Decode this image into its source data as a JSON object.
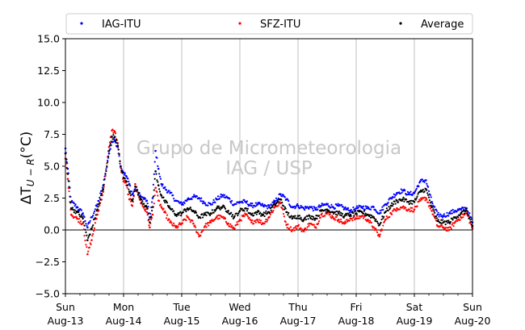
{
  "chart_data": {
    "type": "scatter",
    "title": "",
    "ylabel": "ΔT_{U−R}(°C)",
    "ylabel_display": {
      "main": "ΔT",
      "sub": "U − R",
      "rest": "(°C)"
    },
    "ylim": [
      -5.0,
      15.0
    ],
    "yticks": [
      "−5.0",
      "−2.5",
      "0.0",
      "2.5",
      "5.0",
      "7.5",
      "10.0",
      "12.5",
      "15.0"
    ],
    "ytick_values": [
      -5.0,
      -2.5,
      0.0,
      2.5,
      5.0,
      7.5,
      10.0,
      12.5,
      15.0
    ],
    "x_unit": "days from Sun Aug-13 00:00",
    "xlim": [
      0,
      7
    ],
    "xticks": [
      {
        "day": "Sun",
        "date": "Aug-13"
      },
      {
        "day": "Mon",
        "date": "Aug-14"
      },
      {
        "day": "Tue",
        "date": "Aug-15"
      },
      {
        "day": "Wed",
        "date": "Aug-16"
      },
      {
        "day": "Thu",
        "date": "Aug-17"
      },
      {
        "day": "Fri",
        "date": "Aug-18"
      },
      {
        "day": "Sat",
        "date": "Aug-19"
      },
      {
        "day": "Sun",
        "date": "Aug-20"
      }
    ],
    "grid": "vertical",
    "zero_line": true,
    "legend_position": "top",
    "watermark": [
      "Grupo de Micrometeorologia",
      "IAG / USP"
    ],
    "series": [
      {
        "name": "IAG-ITU",
        "color": "#0000ff",
        "x": [
          0,
          0.04,
          0.1,
          0.2,
          0.3,
          0.38,
          0.45,
          0.55,
          0.65,
          0.75,
          0.8,
          0.85,
          0.9,
          0.95,
          1.0,
          1.05,
          1.1,
          1.15,
          1.2,
          1.3,
          1.4,
          1.45,
          1.5,
          1.55,
          1.6,
          1.65,
          1.7,
          1.8,
          1.9,
          2.0,
          2.1,
          2.2,
          2.3,
          2.4,
          2.5,
          2.6,
          2.7,
          2.8,
          2.9,
          3.0,
          3.1,
          3.2,
          3.3,
          3.4,
          3.5,
          3.6,
          3.7,
          3.8,
          3.9,
          4.0,
          4.1,
          4.2,
          4.3,
          4.4,
          4.5,
          4.6,
          4.7,
          4.8,
          4.9,
          5.0,
          5.1,
          5.2,
          5.3,
          5.4,
          5.5,
          5.6,
          5.7,
          5.8,
          5.9,
          6.0,
          6.1,
          6.2,
          6.3,
          6.4,
          6.5,
          6.6,
          6.7,
          6.8,
          6.9,
          7.0
        ],
        "y": [
          6.4,
          4.8,
          2.2,
          1.8,
          1.3,
          0.2,
          1.0,
          2.0,
          3.5,
          6.0,
          6.9,
          7.0,
          6.5,
          5.0,
          4.5,
          4.2,
          3.6,
          2.8,
          3.2,
          2.6,
          2.3,
          1.0,
          2.5,
          6.2,
          4.8,
          3.6,
          3.3,
          2.9,
          2.3,
          2.0,
          2.4,
          2.6,
          2.5,
          2.1,
          2.0,
          2.4,
          2.7,
          2.5,
          2.0,
          2.2,
          2.2,
          1.9,
          2.0,
          1.9,
          1.8,
          2.2,
          2.8,
          2.4,
          1.8,
          1.9,
          1.7,
          1.8,
          1.6,
          1.9,
          2.0,
          1.8,
          1.9,
          1.7,
          1.5,
          1.7,
          1.8,
          1.7,
          1.8,
          1.3,
          2.0,
          2.5,
          2.9,
          3.1,
          2.8,
          2.9,
          3.8,
          3.9,
          2.2,
          1.2,
          1.1,
          1.3,
          1.5,
          1.6,
          1.7,
          0.6
        ]
      },
      {
        "name": "SFZ-ITU",
        "color": "#ff0000",
        "x": [
          0,
          0.04,
          0.1,
          0.2,
          0.3,
          0.38,
          0.45,
          0.55,
          0.65,
          0.75,
          0.8,
          0.85,
          0.9,
          0.95,
          1.0,
          1.05,
          1.1,
          1.15,
          1.2,
          1.3,
          1.4,
          1.45,
          1.5,
          1.55,
          1.6,
          1.65,
          1.7,
          1.8,
          1.9,
          2.0,
          2.1,
          2.2,
          2.3,
          2.4,
          2.5,
          2.6,
          2.7,
          2.8,
          2.9,
          3.0,
          3.1,
          3.2,
          3.3,
          3.4,
          3.5,
          3.6,
          3.7,
          3.8,
          3.9,
          4.0,
          4.1,
          4.2,
          4.3,
          4.4,
          4.5,
          4.6,
          4.7,
          4.8,
          4.9,
          5.0,
          5.1,
          5.2,
          5.3,
          5.4,
          5.5,
          5.6,
          5.7,
          5.8,
          5.9,
          6.0,
          6.1,
          6.2,
          6.3,
          6.4,
          6.5,
          6.6,
          6.7,
          6.8,
          6.9,
          7.0
        ],
        "y": [
          5.6,
          4.0,
          1.2,
          0.9,
          0.5,
          -1.9,
          -0.8,
          1.2,
          3.0,
          6.5,
          7.8,
          7.7,
          6.8,
          4.9,
          3.8,
          3.5,
          2.4,
          1.9,
          3.6,
          2.1,
          1.4,
          0.2,
          1.2,
          3.3,
          2.3,
          1.8,
          1.4,
          0.6,
          0.2,
          0.5,
          1.0,
          0.5,
          -0.5,
          0.3,
          0.6,
          1.0,
          1.0,
          0.5,
          0.1,
          0.8,
          1.2,
          0.6,
          0.8,
          0.5,
          1.0,
          1.8,
          2.1,
          0.4,
          0.0,
          0.3,
          -0.1,
          0.5,
          0.2,
          1.2,
          1.3,
          1.0,
          0.8,
          0.5,
          0.9,
          0.9,
          1.1,
          0.8,
          0.2,
          -0.5,
          0.8,
          1.3,
          1.7,
          1.8,
          1.6,
          1.6,
          2.3,
          2.5,
          1.5,
          0.3,
          0.2,
          0.0,
          0.6,
          1.0,
          1.3,
          0.1
        ]
      },
      {
        "name": "Average",
        "color": "#000000",
        "x": [
          0,
          0.04,
          0.1,
          0.2,
          0.3,
          0.38,
          0.45,
          0.55,
          0.65,
          0.75,
          0.8,
          0.85,
          0.9,
          0.95,
          1.0,
          1.05,
          1.1,
          1.15,
          1.2,
          1.3,
          1.4,
          1.45,
          1.5,
          1.55,
          1.6,
          1.65,
          1.7,
          1.8,
          1.9,
          2.0,
          2.1,
          2.2,
          2.3,
          2.4,
          2.5,
          2.6,
          2.7,
          2.8,
          2.9,
          3.0,
          3.1,
          3.2,
          3.3,
          3.4,
          3.5,
          3.6,
          3.7,
          3.8,
          3.9,
          4.0,
          4.1,
          4.2,
          4.3,
          4.4,
          4.5,
          4.6,
          4.7,
          4.8,
          4.9,
          5.0,
          5.1,
          5.2,
          5.3,
          5.4,
          5.5,
          5.6,
          5.7,
          5.8,
          5.9,
          6.0,
          6.1,
          6.2,
          6.3,
          6.4,
          6.5,
          6.6,
          6.7,
          6.8,
          6.9,
          7.0
        ],
        "y": [
          6.0,
          4.4,
          1.7,
          1.4,
          0.9,
          -0.8,
          0.1,
          1.6,
          3.2,
          6.2,
          7.3,
          7.3,
          6.6,
          5.0,
          4.1,
          3.8,
          3.0,
          2.3,
          3.4,
          2.4,
          1.8,
          0.6,
          1.8,
          4.6,
          3.5,
          2.7,
          2.3,
          1.7,
          1.2,
          1.3,
          1.7,
          1.5,
          1.0,
          1.2,
          1.3,
          1.7,
          1.8,
          1.5,
          1.0,
          1.5,
          1.7,
          1.2,
          1.4,
          1.2,
          1.4,
          2.0,
          2.4,
          1.4,
          0.9,
          1.1,
          0.8,
          1.1,
          0.9,
          1.5,
          1.6,
          1.4,
          1.3,
          1.1,
          1.2,
          1.3,
          1.4,
          1.2,
          1.0,
          0.4,
          1.4,
          1.9,
          2.3,
          2.4,
          2.2,
          2.2,
          3.0,
          3.2,
          1.8,
          0.7,
          0.6,
          0.6,
          1.0,
          1.3,
          1.5,
          0.3
        ]
      }
    ]
  }
}
